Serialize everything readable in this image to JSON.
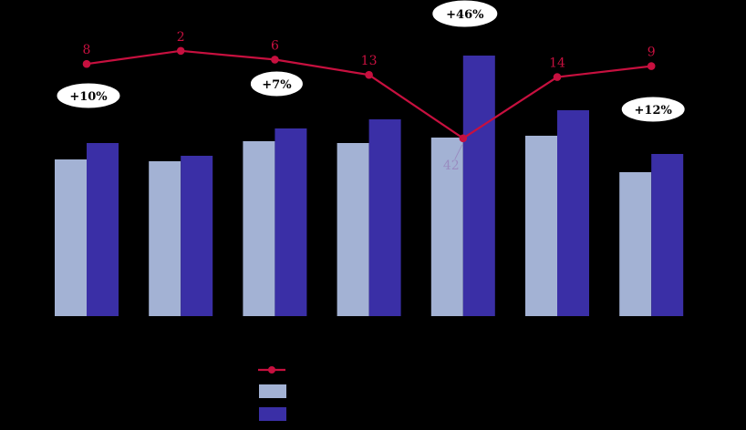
{
  "chart_data": {
    "type": "combo_bar_line",
    "title": "",
    "grid": false,
    "background": "#000000",
    "group_count": 7,
    "categories": [
      "",
      "",
      "",
      "",
      "",
      "",
      ""
    ],
    "series": [
      {
        "name": "bar-light",
        "type": "bar",
        "color": "#a3b2d4",
        "values": [
          86,
          85,
          96,
          95,
          98,
          99,
          79
        ],
        "note": "values estimated from bar heights; no visible value axis"
      },
      {
        "name": "bar-dark",
        "type": "bar",
        "color": "#3a2fa6",
        "values": [
          95,
          88,
          103,
          108,
          143,
          113,
          89
        ],
        "note": "values estimated from bar heights; consistent with % callouts"
      },
      {
        "name": "line",
        "type": "line",
        "color": "#c7103f",
        "values": [
          8,
          2,
          6,
          13,
          42,
          14,
          9
        ],
        "labels": [
          "8",
          "2",
          "6",
          "13",
          "42",
          "14",
          "9"
        ],
        "axis": "secondary_inverted",
        "outlier_index": 4
      }
    ],
    "annotations": [
      {
        "group": 0,
        "text": "+10%"
      },
      {
        "group": 2,
        "text": "+7%"
      },
      {
        "group": 4,
        "text": "+46%"
      },
      {
        "group": 6,
        "text": "+12%"
      }
    ],
    "outlier_label": {
      "text": "42",
      "color": "#998cc0"
    },
    "values_are_estimates": true
  },
  "legend": {
    "items": [
      {
        "marker": "line"
      },
      {
        "marker": "bar-light"
      },
      {
        "marker": "bar-dark"
      }
    ]
  },
  "colors": {
    "background": "#000000",
    "bar_light": "#a3b2d4",
    "bar_dark": "#3a2fa6",
    "line": "#c7103f",
    "outlier_label": "#998cc0",
    "callout_fill": "#ffffff",
    "callout_text": "#000000"
  }
}
